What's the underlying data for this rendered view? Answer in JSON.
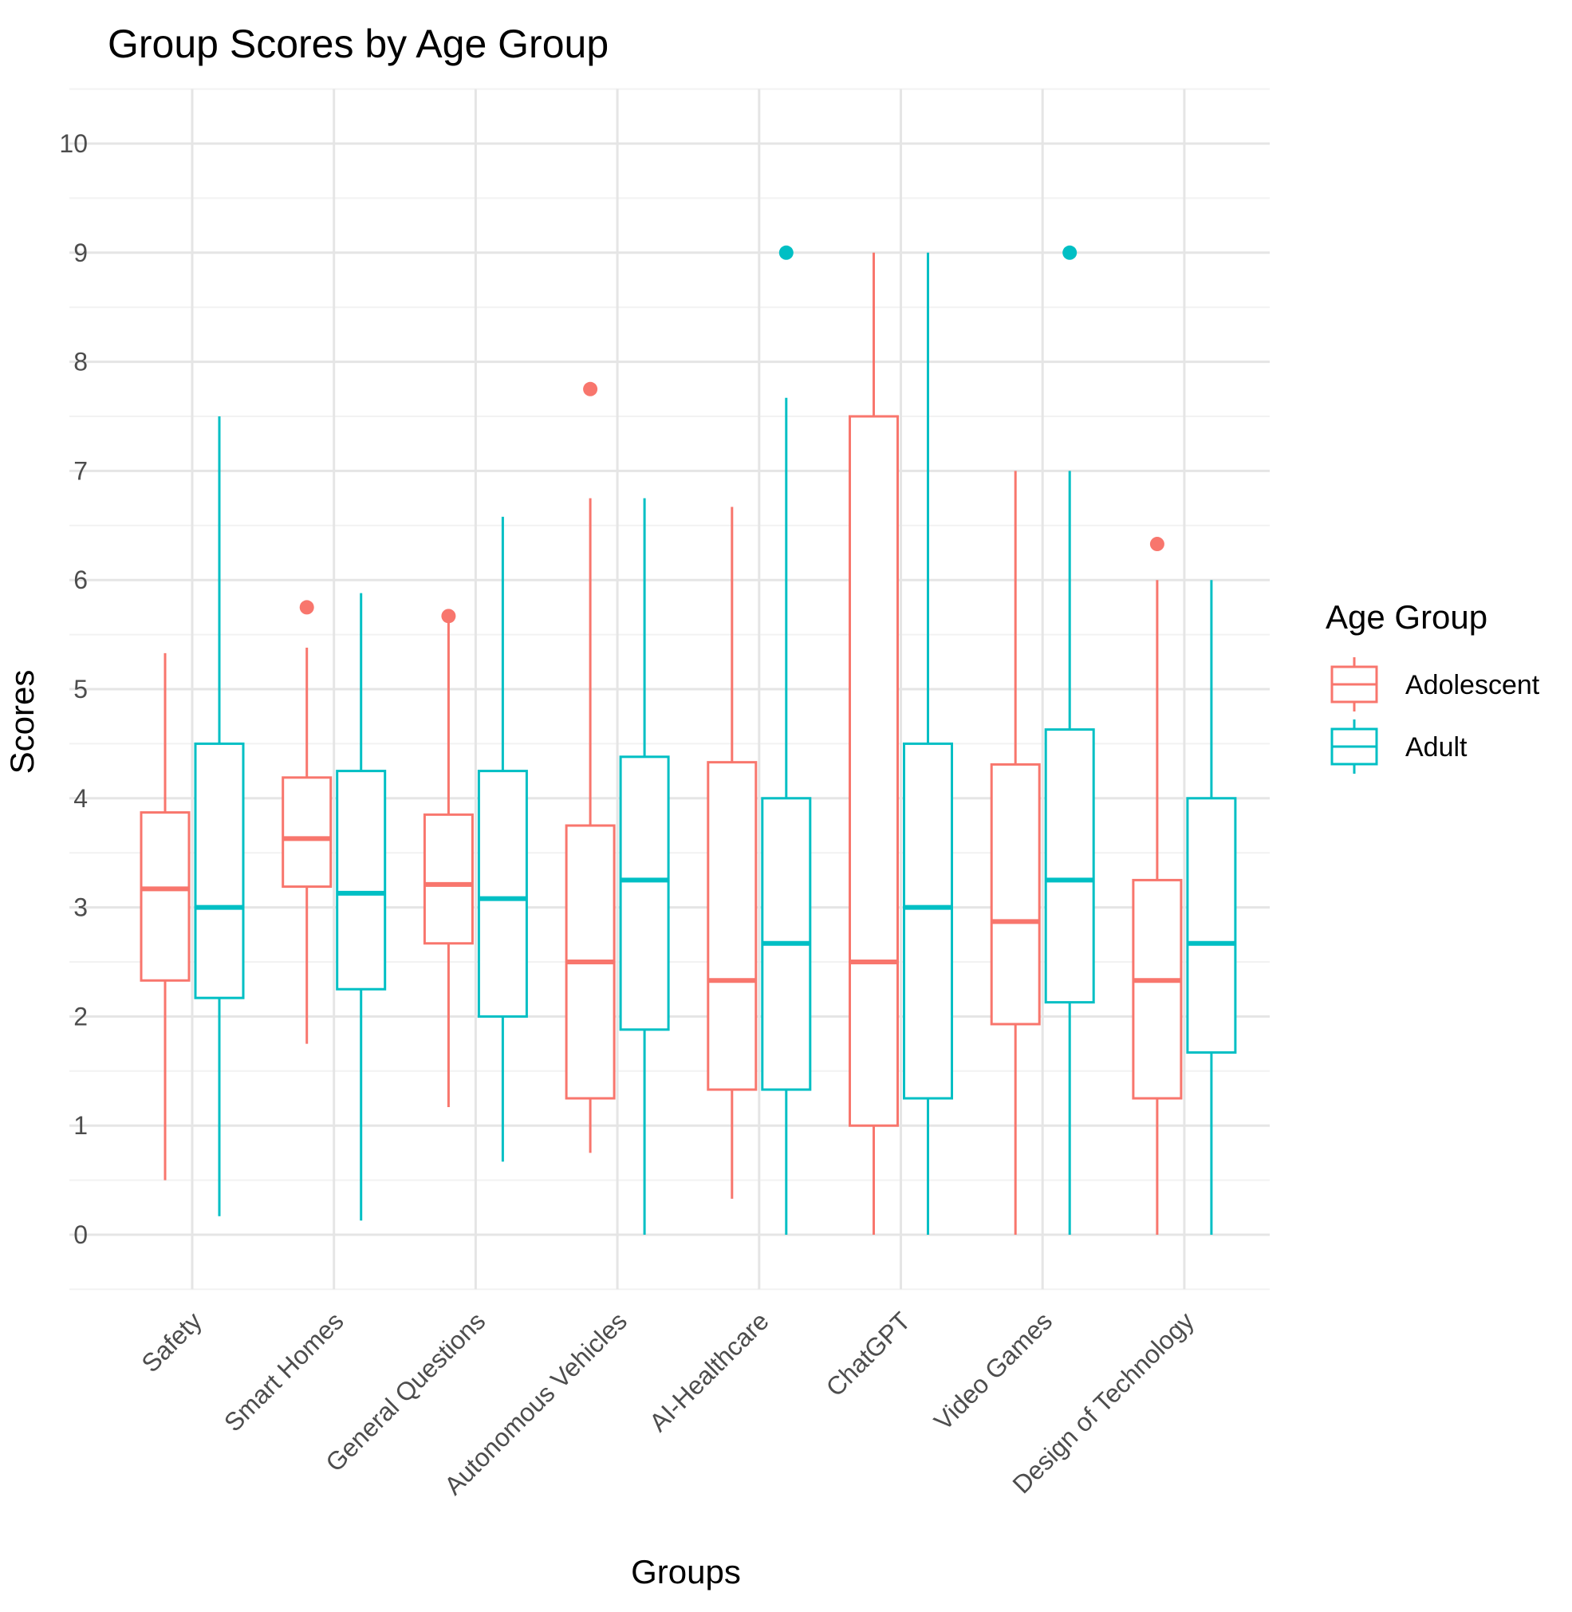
{
  "chart_data": {
    "type": "boxplot",
    "title": "Group Scores by Age Group",
    "xlabel": "Groups",
    "ylabel": "Scores",
    "ylim": [
      -0.5,
      10.5
    ],
    "yticks": [
      0,
      1,
      2,
      3,
      4,
      5,
      6,
      7,
      8,
      9,
      10
    ],
    "categories": [
      "Safety",
      "Smart Homes",
      "General Questions",
      "Autonomous Vehicles",
      "AI-Healthcare",
      "ChatGPT",
      "Video Games",
      "Design of Technology"
    ],
    "legend": {
      "title": "Age Group",
      "position": "right"
    },
    "series": [
      {
        "name": "Adolescent",
        "color": "#F8766D",
        "boxes": [
          {
            "whisker_low": 0.5,
            "q1": 2.33,
            "median": 3.17,
            "q3": 3.87,
            "whisker_high": 5.33,
            "outliers": []
          },
          {
            "whisker_low": 1.75,
            "q1": 3.19,
            "median": 3.63,
            "q3": 4.19,
            "whisker_high": 5.38,
            "outliers": [
              5.75
            ]
          },
          {
            "whisker_low": 1.17,
            "q1": 2.67,
            "median": 3.21,
            "q3": 3.85,
            "whisker_high": 5.67,
            "outliers": [
              5.67
            ]
          },
          {
            "whisker_low": 0.75,
            "q1": 1.25,
            "median": 2.5,
            "q3": 3.75,
            "whisker_high": 6.75,
            "outliers": [
              7.75
            ]
          },
          {
            "whisker_low": 0.33,
            "q1": 1.33,
            "median": 2.33,
            "q3": 4.33,
            "whisker_high": 6.67,
            "outliers": []
          },
          {
            "whisker_low": 0.0,
            "q1": 1.0,
            "median": 2.5,
            "q3": 7.5,
            "whisker_high": 9.0,
            "outliers": []
          },
          {
            "whisker_low": 0.0,
            "q1": 1.93,
            "median": 2.87,
            "q3": 4.31,
            "whisker_high": 7.0,
            "outliers": []
          },
          {
            "whisker_low": 0.0,
            "q1": 1.25,
            "median": 2.33,
            "q3": 3.25,
            "whisker_high": 6.0,
            "outliers": [
              6.33
            ]
          }
        ]
      },
      {
        "name": "Adult",
        "color": "#00BFC4",
        "boxes": [
          {
            "whisker_low": 0.17,
            "q1": 2.17,
            "median": 3.0,
            "q3": 4.5,
            "whisker_high": 7.5,
            "outliers": []
          },
          {
            "whisker_low": 0.13,
            "q1": 2.25,
            "median": 3.13,
            "q3": 4.25,
            "whisker_high": 5.88,
            "outliers": []
          },
          {
            "whisker_low": 0.67,
            "q1": 2.0,
            "median": 3.08,
            "q3": 4.25,
            "whisker_high": 6.58,
            "outliers": []
          },
          {
            "whisker_low": 0.0,
            "q1": 1.88,
            "median": 3.25,
            "q3": 4.38,
            "whisker_high": 6.75,
            "outliers": []
          },
          {
            "whisker_low": 0.0,
            "q1": 1.33,
            "median": 2.67,
            "q3": 4.0,
            "whisker_high": 7.67,
            "outliers": [
              9.0
            ]
          },
          {
            "whisker_low": 0.0,
            "q1": 1.25,
            "median": 3.0,
            "q3": 4.5,
            "whisker_high": 9.0,
            "outliers": []
          },
          {
            "whisker_low": 0.0,
            "q1": 2.13,
            "median": 3.25,
            "q3": 4.63,
            "whisker_high": 7.0,
            "outliers": [
              9.0
            ]
          },
          {
            "whisker_low": 0.0,
            "q1": 1.67,
            "median": 2.67,
            "q3": 4.0,
            "whisker_high": 6.0,
            "outliers": []
          }
        ]
      }
    ]
  }
}
